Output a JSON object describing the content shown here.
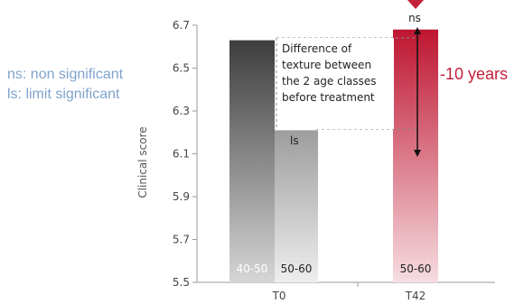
{
  "legend": [
    "ns: non significant",
    "ls: limit significant"
  ],
  "chart_data": {
    "type": "bar",
    "ylabel": "Clinical score",
    "ylim": [
      5.5,
      6.7
    ],
    "yticks": [
      5.5,
      5.7,
      5.9,
      6.1,
      6.3,
      6.5,
      6.7
    ],
    "categories": [
      "T0",
      "T42"
    ],
    "bars": [
      {
        "group": "T0",
        "label": "40-50",
        "value": 6.63,
        "color_top": "#3d3d3d",
        "color_bottom": "#d6d6d6"
      },
      {
        "group": "T0",
        "label": "50-60",
        "value": 6.21,
        "color_top": "#9d9d9d",
        "color_bottom": "#eeeeee"
      },
      {
        "group": "T42",
        "label": "50-60",
        "value": 6.68,
        "color_top": "#be1530",
        "color_bottom": "#f6dde1"
      }
    ],
    "annotations": {
      "box_text": [
        "Difference of",
        "texture between",
        "the 2 age classes",
        "before treatment"
      ],
      "ls_label": "ls",
      "ns_label": "ns",
      "delta_label": "-10 years",
      "accent_color": "#c41f3b"
    }
  }
}
